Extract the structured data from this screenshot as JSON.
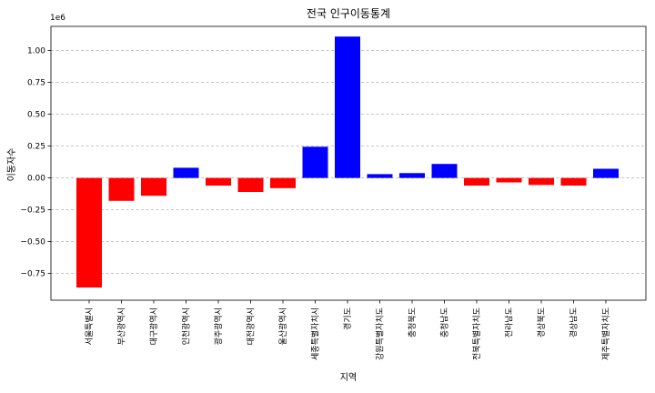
{
  "chart_data": {
    "type": "bar",
    "title": "전국 인구이동통계",
    "xlabel": "지역",
    "ylabel": "이동자수",
    "scale_label": "1e6",
    "categories": [
      "서울특별시",
      "부산광역시",
      "대구광역시",
      "인천광역시",
      "광주광역시",
      "대전광역시",
      "울산광역시",
      "세종특별자치시",
      "경기도",
      "강원특별자치도",
      "충청북도",
      "충청남도",
      "전북특별자치도",
      "전라남도",
      "경상북도",
      "경상남도",
      "제주특별자치도"
    ],
    "values": [
      -860000,
      -180000,
      -140000,
      80000,
      -60000,
      -110000,
      -80000,
      245000,
      1110000,
      30000,
      38000,
      110000,
      -60000,
      -35000,
      -55000,
      -60000,
      72000
    ],
    "positive_color": "#0000ff",
    "negative_color": "#ff0000",
    "ylim": [
      -0.96,
      1.19
    ],
    "yticks": [
      -0.75,
      -0.5,
      -0.25,
      0.0,
      0.25,
      0.5,
      0.75,
      1.0
    ],
    "ytick_labels": [
      "−0.75",
      "−0.50",
      "−0.25",
      "0.00",
      "0.25",
      "0.50",
      "0.75",
      "1.00"
    ],
    "grid": true,
    "grid_axis": "y"
  }
}
